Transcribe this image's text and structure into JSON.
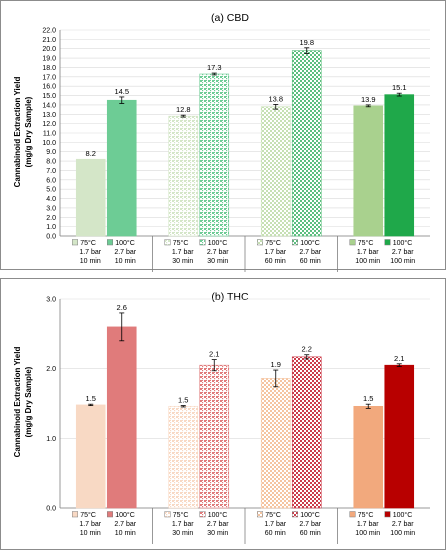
{
  "ylabel_line1": "Cannabinoid Extraction Yield",
  "ylabel_line2": "(mg/g Dry Sample)",
  "chart_data": [
    {
      "type": "bar",
      "title": "(a) CBD",
      "ylim": [
        0,
        22
      ],
      "ytick_step": 1,
      "ytick_decimals": 1,
      "groups": [
        {
          "bars": [
            {
              "value": 8.2,
              "err": 0,
              "label": "8.2",
              "color": "#d4e6c8",
              "pattern": "solid",
              "legend": [
                "75°C",
                "1.7 bar",
                "10 min"
              ]
            },
            {
              "value": 14.5,
              "err": 0.35,
              "label": "14.5",
              "color": "#6dcc95",
              "pattern": "solid",
              "legend": [
                "100°C",
                "2.7 bar",
                "10 min"
              ]
            }
          ]
        },
        {
          "bars": [
            {
              "value": 12.8,
              "err": 0.1,
              "label": "12.8",
              "color": "#d4e6c8",
              "pattern": "dots",
              "legend": [
                "75°C",
                "1.7 bar",
                "30 min"
              ]
            },
            {
              "value": 17.3,
              "err": 0.1,
              "label": "17.3",
              "color": "#6dcc95",
              "pattern": "dots",
              "legend": [
                "100°C",
                "2.7 bar",
                "30 min"
              ]
            }
          ]
        },
        {
          "bars": [
            {
              "value": 13.8,
              "err": 0.25,
              "label": "13.8",
              "color": "#c6e0b4",
              "pattern": "checker",
              "legend": [
                "75°C",
                "1.7 bar",
                "60 min"
              ]
            },
            {
              "value": 19.8,
              "err": 0.3,
              "label": "19.8",
              "color": "#5cbf7f",
              "pattern": "checker",
              "legend": [
                "100°C",
                "2.7 bar",
                "60 min"
              ]
            }
          ]
        },
        {
          "bars": [
            {
              "value": 13.9,
              "err": 0.1,
              "label": "13.9",
              "color": "#a9d18e",
              "pattern": "solid",
              "legend": [
                "75°C",
                "1.7 bar",
                "100 min"
              ]
            },
            {
              "value": 15.1,
              "err": 0.15,
              "label": "15.1",
              "color": "#1fa84a",
              "pattern": "solid",
              "legend": [
                "100°C",
                "2.7 bar",
                "100 min"
              ]
            }
          ]
        }
      ]
    },
    {
      "type": "bar",
      "title": "(b) THC",
      "ylim": [
        0,
        3
      ],
      "ytick_step": 1,
      "ytick_decimals": 1,
      "groups": [
        {
          "bars": [
            {
              "value": 1.48,
              "err": 0.01,
              "label": "1.5",
              "color": "#f8d9c4",
              "pattern": "solid",
              "legend": [
                "75°C",
                "1.7 bar",
                "10 min"
              ]
            },
            {
              "value": 2.6,
              "err": 0.2,
              "label": "2.6",
              "color": "#e07b7b",
              "pattern": "solid",
              "legend": [
                "100°C",
                "2.7 bar",
                "10 min"
              ]
            }
          ]
        },
        {
          "bars": [
            {
              "value": 1.46,
              "err": 0.01,
              "label": "1.5",
              "color": "#f8d9c4",
              "pattern": "dots",
              "legend": [
                "75°C",
                "1.7 bar",
                "30 min"
              ]
            },
            {
              "value": 2.05,
              "err": 0.08,
              "label": "2.1",
              "color": "#e07b7b",
              "pattern": "dots",
              "legend": [
                "100°C",
                "2.7 bar",
                "30 min"
              ]
            }
          ]
        },
        {
          "bars": [
            {
              "value": 1.86,
              "err": 0.12,
              "label": "1.9",
              "color": "#f5c4a0",
              "pattern": "checker",
              "legend": [
                "75°C",
                "1.7 bar",
                "60 min"
              ]
            },
            {
              "value": 2.17,
              "err": 0.03,
              "label": "2.2",
              "color": "#cc3c4a",
              "pattern": "checker",
              "legend": [
                "100°C",
                "2.7 bar",
                "60 min"
              ]
            }
          ]
        },
        {
          "bars": [
            {
              "value": 1.46,
              "err": 0.03,
              "label": "1.5",
              "color": "#f2a97d",
              "pattern": "solid",
              "legend": [
                "75°C",
                "1.7 bar",
                "100 min"
              ]
            },
            {
              "value": 2.05,
              "err": 0.02,
              "label": "2.1",
              "color": "#b80000",
              "pattern": "solid",
              "legend": [
                "100°C",
                "2.7 bar",
                "100 min"
              ]
            }
          ]
        }
      ]
    }
  ]
}
